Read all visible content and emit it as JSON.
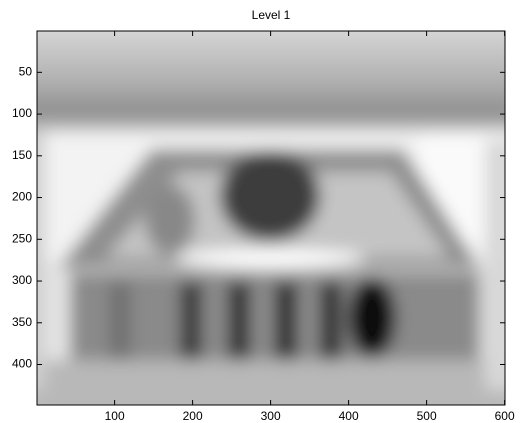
{
  "chart_data": {
    "type": "image",
    "title": "Level 1",
    "xlim": [
      0.5,
      600.5
    ],
    "ylim": [
      0.5,
      448.5
    ],
    "ydir": "reverse",
    "xticks": [
      100,
      200,
      300,
      400,
      500,
      600
    ],
    "yticks": [
      50,
      100,
      150,
      200,
      250,
      300,
      350,
      400
    ],
    "colormap": "gray"
  }
}
